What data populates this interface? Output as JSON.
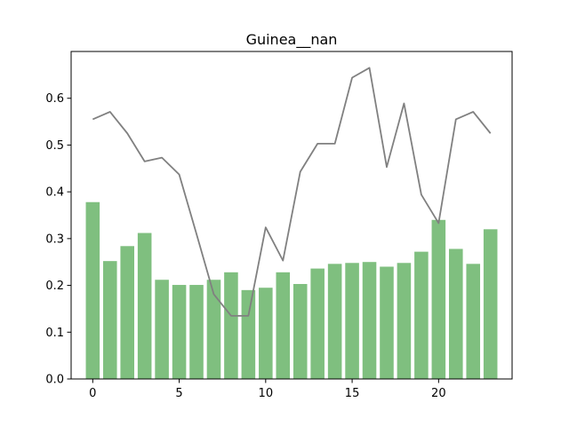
{
  "chart_data": {
    "type": "bar",
    "title": "Guinea__nan",
    "xlabel": "",
    "ylabel": "",
    "x": [
      0,
      1,
      2,
      3,
      4,
      5,
      6,
      7,
      8,
      9,
      10,
      11,
      12,
      13,
      14,
      15,
      16,
      17,
      18,
      19,
      20,
      21,
      22,
      23
    ],
    "series": [
      {
        "kind": "bar",
        "color": "#7fbf7f",
        "values": [
          0.378,
          0.252,
          0.284,
          0.312,
          0.212,
          0.201,
          0.201,
          0.212,
          0.228,
          0.19,
          0.195,
          0.228,
          0.203,
          0.236,
          0.246,
          0.248,
          0.25,
          0.24,
          0.248,
          0.272,
          0.34,
          0.278,
          0.246,
          0.32
        ]
      },
      {
        "kind": "line",
        "color": "#808080",
        "values": [
          0.555,
          0.571,
          0.525,
          0.465,
          0.473,
          0.437,
          0.31,
          0.181,
          0.135,
          0.135,
          0.324,
          0.253,
          0.443,
          0.503,
          0.503,
          0.644,
          0.665,
          0.453,
          0.589,
          0.394,
          0.333,
          0.555,
          0.571,
          0.525
        ]
      }
    ],
    "xlim": [
      -1.25,
      24.25
    ],
    "ylim": [
      0,
      0.7
    ],
    "xticks": [
      0,
      5,
      10,
      15,
      20
    ],
    "yticks": [
      0.0,
      0.1,
      0.2,
      0.3,
      0.4,
      0.5,
      0.6
    ],
    "xtick_labels": [
      "0",
      "5",
      "10",
      "15",
      "20"
    ],
    "ytick_labels": [
      "0.0",
      "0.1",
      "0.2",
      "0.3",
      "0.4",
      "0.5",
      "0.6"
    ],
    "grid": false
  }
}
